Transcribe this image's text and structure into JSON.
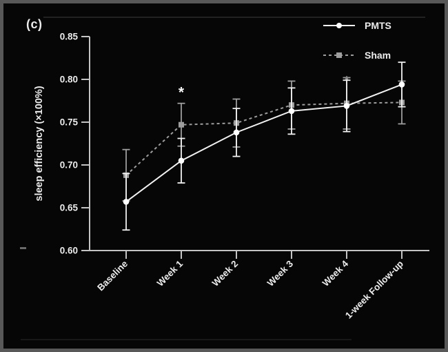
{
  "panel_label": "(c)",
  "colors": {
    "background": "#060606",
    "border": "#585858",
    "axis": "#c4c4c4",
    "text": "#ececec",
    "pmts": "#f2f2f2",
    "sham": "#9e9e9e",
    "faint_edge": "#2c2c2c"
  },
  "chart_data": {
    "type": "line",
    "title": "",
    "panel": "(c)",
    "ylabel": "sleep efficiency (×100%)",
    "xlabel": "",
    "ylim": [
      0.6,
      0.85
    ],
    "yticks": [
      0.6,
      0.65,
      0.7,
      0.75,
      0.8,
      0.85
    ],
    "categories": [
      "Baseline",
      "Week 1",
      "Week 2",
      "Week 3",
      "Week 4",
      "1-week Follow-up"
    ],
    "grid": false,
    "legend_position": "top-right",
    "series": [
      {
        "name": "PMTS",
        "marker": "circle",
        "line_style": "solid",
        "values": [
          0.657,
          0.705,
          0.738,
          0.763,
          0.769,
          0.794
        ],
        "error": [
          0.033,
          0.026,
          0.028,
          0.027,
          0.03,
          0.026
        ]
      },
      {
        "name": "Sham",
        "marker": "square",
        "line_style": "dashed",
        "values": [
          0.688,
          0.747,
          0.749,
          0.77,
          0.772,
          0.773
        ],
        "error": [
          0.03,
          0.025,
          0.028,
          0.028,
          0.03,
          0.025
        ]
      }
    ],
    "annotations": [
      {
        "category": "Week 1",
        "value": 0.786,
        "symbol": "*",
        "style": "bright"
      },
      {
        "category": "Week 4",
        "value": 0.801,
        "symbol": "*",
        "style": "faint"
      }
    ]
  }
}
